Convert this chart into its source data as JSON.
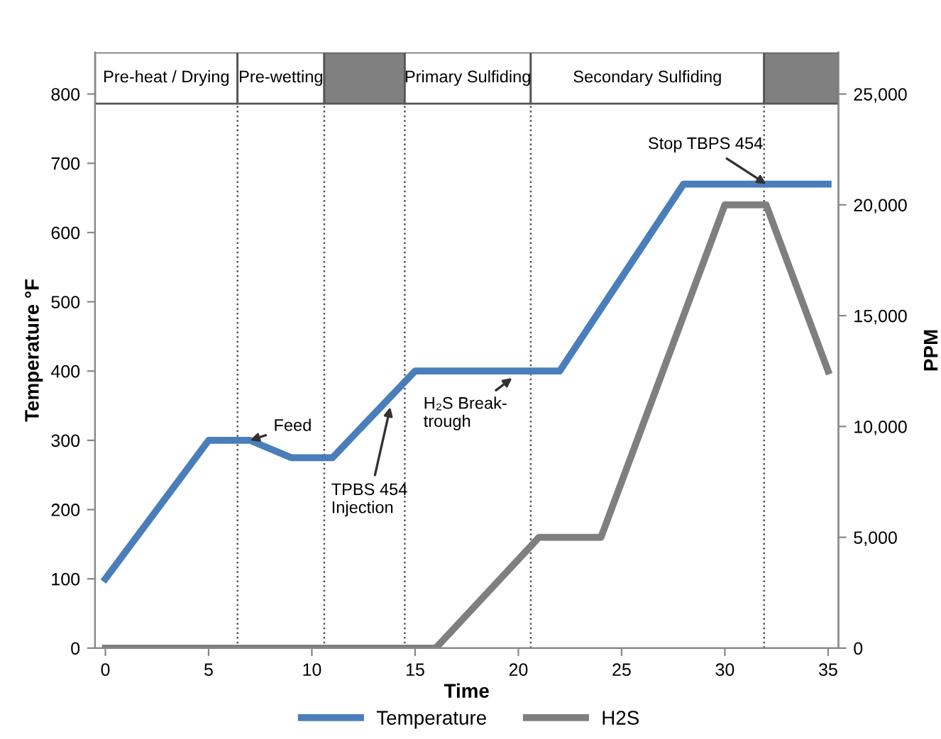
{
  "chart_data": {
    "type": "line",
    "xlabel": "Time",
    "ylabel": "Temperature °F",
    "y2label": "PPM",
    "xlim": [
      -0.5,
      35.5
    ],
    "xticks": [
      0,
      5,
      10,
      15,
      20,
      25,
      30,
      35
    ],
    "ylim": [
      0,
      860
    ],
    "yticks": [
      0,
      100,
      200,
      300,
      400,
      500,
      600,
      700,
      800
    ],
    "y2lim": [
      0,
      26875
    ],
    "y2ticks": [
      {
        "value": 0,
        "label": "0"
      },
      {
        "value": 5000,
        "label": "5,000"
      },
      {
        "value": 10000,
        "label": "10,000"
      },
      {
        "value": 15000,
        "label": "15,000"
      },
      {
        "value": 20000,
        "label": "20,000"
      },
      {
        "value": 25000,
        "label": "25,000"
      }
    ],
    "series": [
      {
        "name": "Temperature",
        "color": "#4a7ebb",
        "x": [
          0,
          5,
          7,
          9,
          11,
          15,
          22,
          28,
          35
        ],
        "values": [
          100,
          300,
          300,
          275,
          275,
          400,
          400,
          670,
          670
        ]
      },
      {
        "name": "H2S",
        "color": "#7f7f7f",
        "axis": "y2",
        "x": [
          0,
          16,
          21,
          24,
          30,
          32,
          35
        ],
        "values": [
          0,
          0,
          5000,
          5000,
          20000,
          20000,
          12500
        ]
      }
    ],
    "ref_lines": [
      {
        "axis": "x",
        "value": 6.4,
        "line_style": "dotted"
      },
      {
        "axis": "x",
        "value": 10.6,
        "line_style": "dotted"
      },
      {
        "axis": "x",
        "value": 14.5,
        "line_style": "dotted"
      },
      {
        "axis": "x",
        "value": 20.6,
        "line_style": "dotted"
      },
      {
        "axis": "x",
        "value": 31.9,
        "line_style": "dotted"
      }
    ],
    "bands": [
      {
        "axis": "x",
        "from": -0.5,
        "to": 6.4,
        "label": "Pre-heat / Drying"
      },
      {
        "axis": "x",
        "from": 6.4,
        "to": 10.6,
        "label": "Pre-wetting"
      },
      {
        "axis": "x",
        "from": 10.6,
        "to": 14.5,
        "color": "#808080"
      },
      {
        "axis": "x",
        "from": 14.5,
        "to": 20.6,
        "label": "Primary Sulfiding"
      },
      {
        "axis": "x",
        "from": 20.6,
        "to": 31.9,
        "label": "Secondary Sulfiding"
      },
      {
        "axis": "x",
        "from": 31.9,
        "to": 35.5,
        "color": "#808080"
      }
    ],
    "annotations": [
      {
        "text": "Feed",
        "x": 7,
        "y": 300
      },
      {
        "text": "TPBS 454\nInjection",
        "x": 13.8,
        "y": 348
      },
      {
        "text": "H₂S Break-\ntrough",
        "x": 19.7,
        "y": 390
      },
      {
        "text": "Stop TBPS 454",
        "x": 32,
        "y": 670
      }
    ],
    "legend": "bottom",
    "grid": false,
    "marker": "none",
    "line_style": "solid"
  }
}
